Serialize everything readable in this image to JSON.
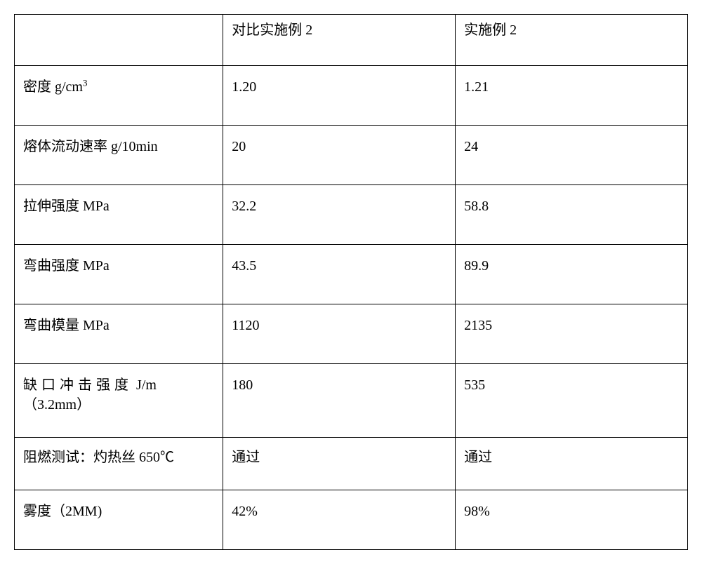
{
  "table": {
    "background_color": "#ffffff",
    "border_color": "#000000",
    "text_color": "#000000",
    "font_family": "SimSun",
    "font_size_pt": 15,
    "columns": [
      {
        "key": "prop",
        "header": "",
        "width_pct": 31
      },
      {
        "key": "colA",
        "header": "对比实施例 2",
        "width_pct": 34.5
      },
      {
        "key": "colB",
        "header": "实施例 2",
        "width_pct": 34.5
      }
    ],
    "rows": [
      {
        "prop_html": "密度 g/cm<sup>3</sup>",
        "prop": "密度 g/cm3",
        "colA": "1.20",
        "colB": "1.21"
      },
      {
        "prop_html": "",
        "prop": "熔体流动速率 g/10min",
        "colA": "20",
        "colB": "24"
      },
      {
        "prop_html": "",
        "prop": "拉伸强度 MPa",
        "colA": "32.2",
        "colB": "58.8"
      },
      {
        "prop_html": "",
        "prop": "弯曲强度 MPa",
        "colA": "43.5",
        "colB": "89.9"
      },
      {
        "prop_html": "",
        "prop": "弯曲模量 MPa",
        "colA": "1120",
        "colB": "2135"
      },
      {
        "prop_html": "<span class=\"spaced\">缺口冲击强度</span> J/m<br>（3.2mm）",
        "prop": "缺口冲击强度 J/m （3.2mm）",
        "colA": "180",
        "colB": "535"
      },
      {
        "prop_html": "",
        "prop": "阻燃测试：灼热丝 650℃",
        "colA": "通过",
        "colB": "通过"
      },
      {
        "prop_html": "",
        "prop": "雾度（2MM)",
        "colA": "42%",
        "colB": "98%"
      }
    ]
  }
}
